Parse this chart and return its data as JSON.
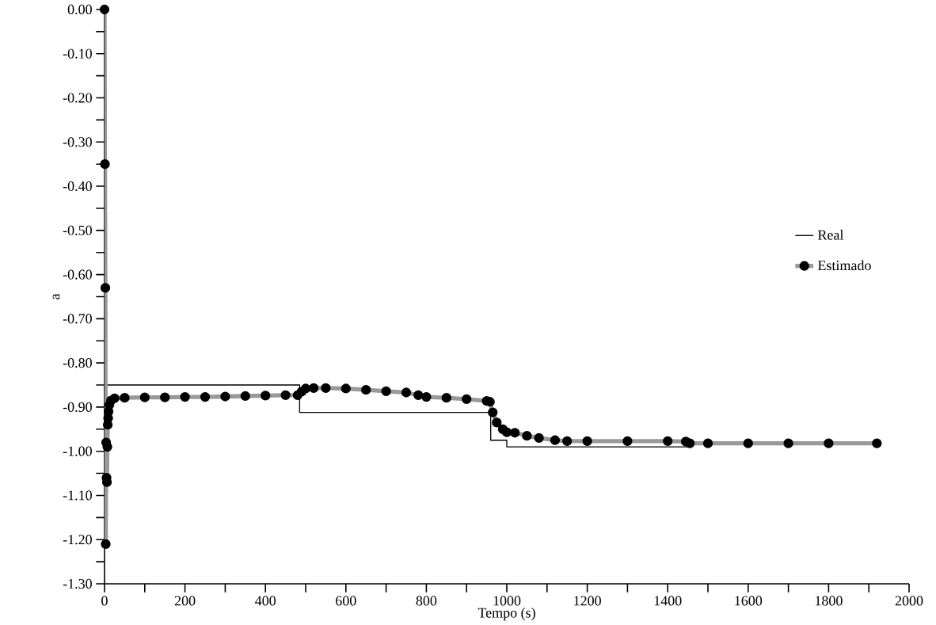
{
  "chart_data": {
    "type": "line",
    "xlabel": "Tempo (s)",
    "ylabel": "a",
    "xlim": [
      0,
      2000
    ],
    "ylim": [
      -1.3,
      0
    ],
    "xticks": [
      0,
      200,
      400,
      600,
      800,
      1000,
      1200,
      1400,
      1600,
      1800,
      2000
    ],
    "yticks": [
      {
        "value": 0,
        "label": "0.00"
      },
      {
        "value": -0.1,
        "label": "-0.10"
      },
      {
        "value": -0.2,
        "label": "-0.20"
      },
      {
        "value": -0.3,
        "label": "-0.30"
      },
      {
        "value": -0.4,
        "label": "-0.40"
      },
      {
        "value": -0.5,
        "label": "-0.50"
      },
      {
        "value": -0.6,
        "label": "-0.60"
      },
      {
        "value": -0.7,
        "label": "-0.70"
      },
      {
        "value": -0.8,
        "label": "-0.80"
      },
      {
        "value": -0.9,
        "label": "-0.90"
      },
      {
        "value": -1.0,
        "label": "-1.00"
      },
      {
        "value": -1.1,
        "label": "-1.10"
      },
      {
        "value": -1.2,
        "label": "-1.20"
      },
      {
        "value": -1.3,
        "label": "-1.30"
      }
    ],
    "legend": "right",
    "grid": false,
    "series": [
      {
        "name": "Real",
        "type": "step",
        "color": "#000000",
        "marker": "none",
        "x": [
          0,
          485,
          960,
          1000,
          1450,
          1920
        ],
        "values": [
          -0.85,
          -0.912,
          -0.975,
          -0.99,
          -0.98,
          -0.98
        ]
      },
      {
        "name": "Estimado",
        "type": "line",
        "color": "#999999",
        "marker": "circle",
        "x": [
          0,
          1,
          2,
          3,
          4,
          5,
          6,
          7,
          8,
          9,
          10,
          12,
          16,
          25,
          50,
          100,
          150,
          200,
          250,
          300,
          350,
          400,
          450,
          480,
          490,
          500,
          520,
          550,
          600,
          650,
          700,
          750,
          780,
          800,
          850,
          900,
          950,
          958,
          965,
          975,
          990,
          1000,
          1020,
          1050,
          1080,
          1120,
          1150,
          1200,
          1300,
          1400,
          1445,
          1455,
          1500,
          1600,
          1700,
          1800,
          1920
        ],
        "values": [
          0,
          -0.35,
          -0.63,
          -1.21,
          -0.98,
          -1.06,
          -1.07,
          -0.99,
          -0.94,
          -0.925,
          -0.91,
          -0.895,
          -0.885,
          -0.88,
          -0.879,
          -0.878,
          -0.878,
          -0.877,
          -0.877,
          -0.876,
          -0.875,
          -0.874,
          -0.873,
          -0.873,
          -0.865,
          -0.858,
          -0.857,
          -0.857,
          -0.858,
          -0.861,
          -0.864,
          -0.867,
          -0.873,
          -0.877,
          -0.879,
          -0.882,
          -0.886,
          -0.888,
          -0.912,
          -0.935,
          -0.95,
          -0.957,
          -0.958,
          -0.965,
          -0.97,
          -0.975,
          -0.977,
          -0.977,
          -0.977,
          -0.977,
          -0.978,
          -0.982,
          -0.982,
          -0.982,
          -0.982,
          -0.982,
          -0.982
        ]
      }
    ]
  }
}
